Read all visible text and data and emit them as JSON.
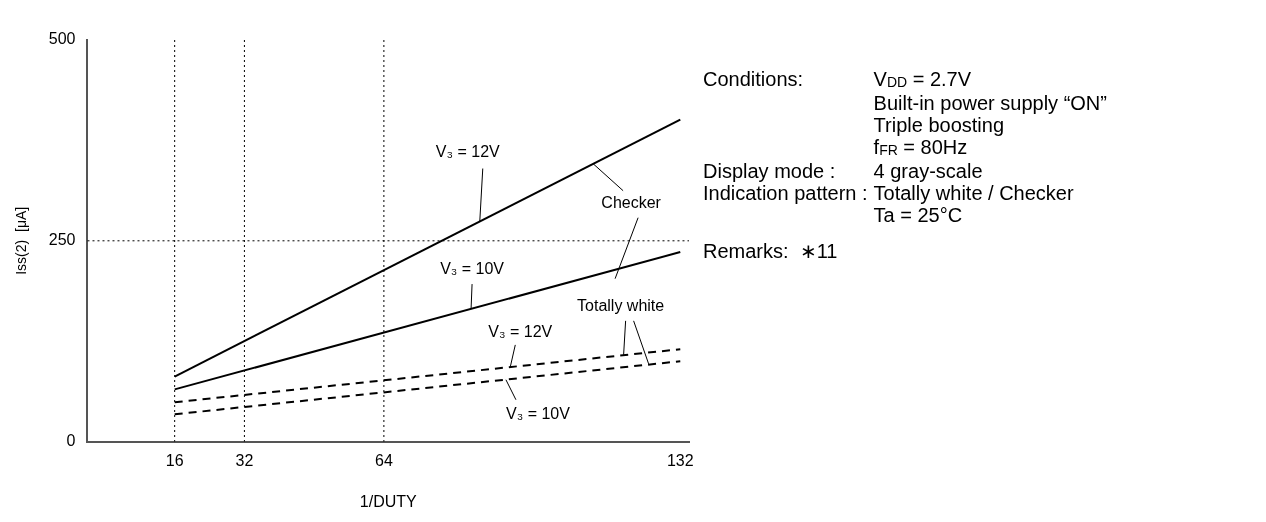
{
  "chart_data": {
    "type": "line",
    "xlabel": "1/DUTY",
    "ylabel": "Iss(2)  [μA]",
    "xlim": [
      -4,
      134
    ],
    "xticks": [
      16,
      32,
      64,
      132
    ],
    "ylim": [
      0,
      500
    ],
    "yticks": [
      0,
      250,
      500
    ],
    "grid": false,
    "legend": false,
    "marker": "none",
    "x": [
      16,
      132
    ],
    "series": [
      {
        "color": "#000000",
        "line_style": "solid",
        "values": [
          81,
          401
        ]
      },
      {
        "color": "#000000",
        "line_style": "solid",
        "values": [
          65,
          236
        ]
      },
      {
        "color": "#000000",
        "line_style": "dashed",
        "values": [
          49,
          115
        ]
      },
      {
        "color": "#000000",
        "line_style": "dashed",
        "values": [
          34,
          100
        ]
      }
    ],
    "ref_lines": [
      {
        "axis": "x",
        "value": 16,
        "line_style": "dotted"
      },
      {
        "axis": "x",
        "value": 32,
        "line_style": "dotted"
      },
      {
        "axis": "x",
        "value": 64,
        "line_style": "dotted"
      },
      {
        "axis": "y",
        "value": 250,
        "line_style": "dotted"
      }
    ],
    "annotations": [
      {
        "text": "V₃ = 12V",
        "x": 86,
        "y": 274
      },
      {
        "text": "Checker",
        "x": 112,
        "y": 346
      },
      {
        "text": "V₃ = 10V",
        "x": 84,
        "y": 165
      },
      {
        "text": "Totally white",
        "x": 119,
        "y": 108
      },
      {
        "text": "V₃ = 12V",
        "x": 93,
        "y": 93
      },
      {
        "text": "V₃ = 10V",
        "x": 92,
        "y": 77
      },
      "Conditions:",
      "V$_{DD}$ = 2.7V",
      "Built-in power supply “ON”",
      "Triple boosting",
      "f$_{FR}$ = 80Hz",
      "Display mode :",
      "4 gray-scale",
      "Indication pattern :",
      "Totally white / Checker",
      "Ta = 25°C",
      "Remarks:  ∗11"
    ]
  }
}
